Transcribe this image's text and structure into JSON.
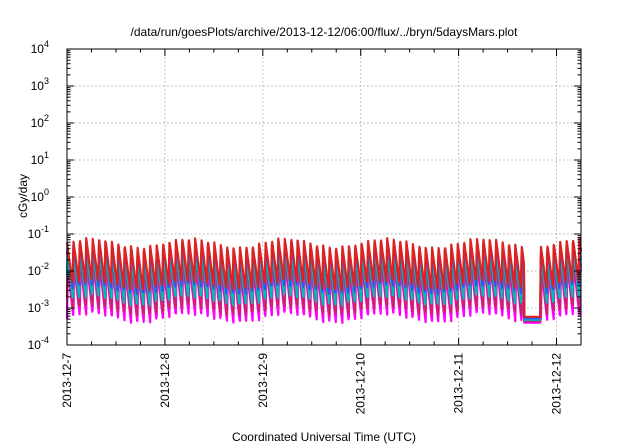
{
  "chart_data": {
    "type": "line",
    "title": "/data/run/goesPlots/archive/2013-12-12/06:00/flux/../bryn/5daysMars.plot",
    "xlabel": "Coordinated Universal Time (UTC)",
    "ylabel": "cGy/day",
    "yscale": "log",
    "ylim": [
      0.0001,
      10000
    ],
    "xlim": [
      "2013-12-07 00:00",
      "2013-12-12 06:00"
    ],
    "grid": true,
    "legend": "none",
    "y_ticks": [
      {
        "value": 0.0001,
        "base": "10",
        "exp": "-4"
      },
      {
        "value": 0.001,
        "base": "10",
        "exp": "-3"
      },
      {
        "value": 0.01,
        "base": "10",
        "exp": "-2"
      },
      {
        "value": 0.1,
        "base": "10",
        "exp": "-1"
      },
      {
        "value": 1,
        "base": "10",
        "exp": "0"
      },
      {
        "value": 10,
        "base": "10",
        "exp": "1"
      },
      {
        "value": 100,
        "base": "10",
        "exp": "2"
      },
      {
        "value": 1000,
        "base": "10",
        "exp": "3"
      },
      {
        "value": 10000,
        "base": "10",
        "exp": "4"
      }
    ],
    "x_ticks": [
      "2013-12-7",
      "2013-12-8",
      "2013-12-9",
      "2013-12-10",
      "2013-12-11",
      "2013-12-12"
    ],
    "x_tick_dates": [
      "2013-12-07 00:00",
      "2013-12-08 00:00",
      "2013-12-09 00:00",
      "2013-12-10 00:00",
      "2013-12-11 00:00",
      "2013-12-12 00:00"
    ],
    "series": [
      {
        "color": "#ff00ff",
        "peak": 0.012,
        "trough": 0.0005
      },
      {
        "color": "#cc2266",
        "peak": 0.018,
        "trough": 0.0008
      },
      {
        "color": "#00bbbb",
        "peak": 0.03,
        "trough": 0.0015
      },
      {
        "color": "#3355ee",
        "peak": 0.05,
        "trough": 0.003
      },
      {
        "color": "#dd2222",
        "peak": 0.06,
        "trough": 0.004
      }
    ],
    "pattern": {
      "description": "sawtooth: sharp rise then gradual decay, approx 94 minute period",
      "period_hours": 1.57,
      "dip_window": [
        "2013-12-11 16:00",
        "2013-12-11 20:00"
      ],
      "dip_level": 0.0004
    }
  }
}
